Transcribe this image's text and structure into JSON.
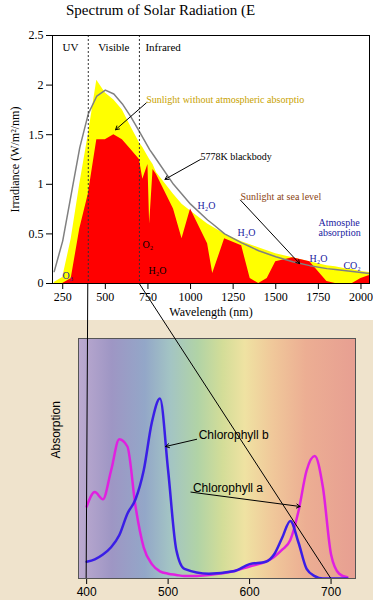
{
  "chart_data": [
    {
      "type": "area",
      "title": "Spectrum of Solar Radiation (E",
      "x_label": "Wavelength (nm)",
      "y_label": "Irradiance (W/m²/nm)",
      "x": [
        200,
        250,
        300,
        350,
        400,
        450,
        500,
        550,
        600,
        650,
        700,
        720,
        750,
        760,
        780,
        800,
        900,
        950,
        1000,
        1100,
        1130,
        1200,
        1300,
        1350,
        1400,
        1450,
        1500,
        1600,
        1700,
        1800,
        1850,
        1900,
        1950,
        2000,
        2050
      ],
      "series": [
        {
          "name": "Sunlight without atmospheric absorptio",
          "type": "area",
          "color": "#ffff00",
          "label_color": "#c8a200",
          "label_at": [
            740,
            1.82
          ],
          "arrow_to": [
            560,
            1.55
          ],
          "values": [
            0.01,
            0.06,
            0.45,
            1.0,
            1.5,
            2.05,
            1.92,
            1.85,
            1.75,
            1.58,
            1.42,
            1.37,
            1.28,
            1.25,
            1.2,
            1.12,
            0.9,
            0.8,
            0.73,
            0.6,
            0.57,
            0.5,
            0.42,
            0.39,
            0.36,
            0.33,
            0.3,
            0.26,
            0.22,
            0.18,
            0.17,
            0.15,
            0.14,
            0.12,
            0.11
          ]
        },
        {
          "name": "Sunlight at sea level",
          "type": "area",
          "color": "#ff0000",
          "label_color": "#8b4513",
          "label_at": [
            1293,
            0.84
          ],
          "arrow_to": [
            1640,
            0.2
          ],
          "values": [
            0,
            0,
            0.05,
            0.55,
            0.9,
            1.45,
            1.45,
            1.5,
            1.45,
            1.35,
            1.25,
            1.05,
            1.2,
            0.6,
            1.15,
            1.1,
            0.75,
            0.45,
            0.75,
            0.4,
            0.1,
            0.45,
            0.38,
            0.05,
            0,
            0.05,
            0.22,
            0.26,
            0.22,
            0.02,
            0,
            0,
            0,
            0.05,
            0.08
          ]
        },
        {
          "name": "5778K blackbody",
          "type": "line",
          "color": "#808080",
          "label_color": "#000000",
          "label_at": [
            1058,
            1.25
          ],
          "arrow_to": [
            850,
            1.05
          ],
          "values": [
            0.12,
            0.43,
            0.9,
            1.37,
            1.71,
            1.89,
            1.95,
            1.91,
            1.81,
            1.68,
            1.53,
            1.47,
            1.38,
            1.35,
            1.3,
            1.25,
            1.0,
            0.9,
            0.8,
            0.64,
            0.6,
            0.5,
            0.41,
            0.37,
            0.33,
            0.3,
            0.27,
            0.22,
            0.18,
            0.15,
            0.14,
            0.13,
            0.12,
            0.11,
            0.1
          ]
        }
      ],
      "regions": {
        "bounds": [
          400,
          700
        ],
        "labels": [
          "UV",
          "Visible",
          "Infrared"
        ]
      },
      "annotations": [
        {
          "text": "O₃",
          "x": 249,
          "y": 0.08,
          "color": "#1a1aa0"
        },
        {
          "text": "O₂",
          "x": 718,
          "y": 0.39,
          "color": "#000000"
        },
        {
          "text": "H₂O",
          "x": 753,
          "y": 0.13,
          "color": "#000000"
        },
        {
          "text": "H₂O",
          "x": 1041,
          "y": 0.78,
          "color": "#1a1aa0"
        },
        {
          "text": "H₂O",
          "x": 1276,
          "y": 0.51,
          "color": "#1a1aa0"
        },
        {
          "text": "H₂O",
          "x": 1698,
          "y": 0.25,
          "color": "#1a1aa0"
        },
        {
          "text": "CO₂",
          "x": 1897,
          "y": 0.18,
          "color": "#1a1aa0"
        },
        {
          "text": "Atmosphe\nabsorption",
          "x": 1751,
          "y": 0.56,
          "color": "#1a1aa0"
        }
      ],
      "xlim": [
        190,
        2050
      ],
      "xticks": [
        250,
        500,
        750,
        1000,
        1250,
        1500,
        1750,
        2000
      ],
      "ylim": [
        0,
        2.5
      ],
      "yticks": [
        0,
        0.5,
        1,
        1.5,
        2,
        2.5
      ]
    },
    {
      "type": "line",
      "y_label": "Absorption",
      "x": [
        400,
        410,
        420,
        430,
        440,
        450,
        460,
        470,
        480,
        490,
        500,
        510,
        520,
        550,
        580,
        600,
        620,
        630,
        640,
        650,
        660,
        670,
        680,
        690,
        700,
        710,
        720
      ],
      "series": [
        {
          "name": "Chlorophyll a",
          "color": "#e020e0",
          "label_at": [
            528,
            0.36
          ],
          "arrow_to": [
            662,
            0.3
          ],
          "values": [
            0.3,
            0.36,
            0.33,
            0.45,
            0.58,
            0.55,
            0.3,
            0.13,
            0.06,
            0.03,
            0.02,
            0.015,
            0.01,
            0.015,
            0.03,
            0.05,
            0.07,
            0.09,
            0.12,
            0.16,
            0.28,
            0.45,
            0.51,
            0.38,
            0.1,
            0.02,
            0.005
          ]
        },
        {
          "name": "Chlorophyll b",
          "color": "#3a1ee6",
          "label_at": [
            535,
            0.58
          ],
          "arrow_to": [
            497,
            0.55
          ],
          "values": [
            0.07,
            0.08,
            0.1,
            0.13,
            0.18,
            0.27,
            0.33,
            0.45,
            0.65,
            0.75,
            0.45,
            0.12,
            0.04,
            0.02,
            0.03,
            0.06,
            0.07,
            0.1,
            0.17,
            0.24,
            0.15,
            0.04,
            0.01,
            0,
            0,
            0,
            0
          ]
        }
      ],
      "xlim": [
        390,
        730
      ],
      "xticks": [
        400,
        500,
        600,
        700
      ],
      "ylim": [
        0,
        1
      ],
      "yticks": [],
      "tick_labels": "x"
    }
  ]
}
